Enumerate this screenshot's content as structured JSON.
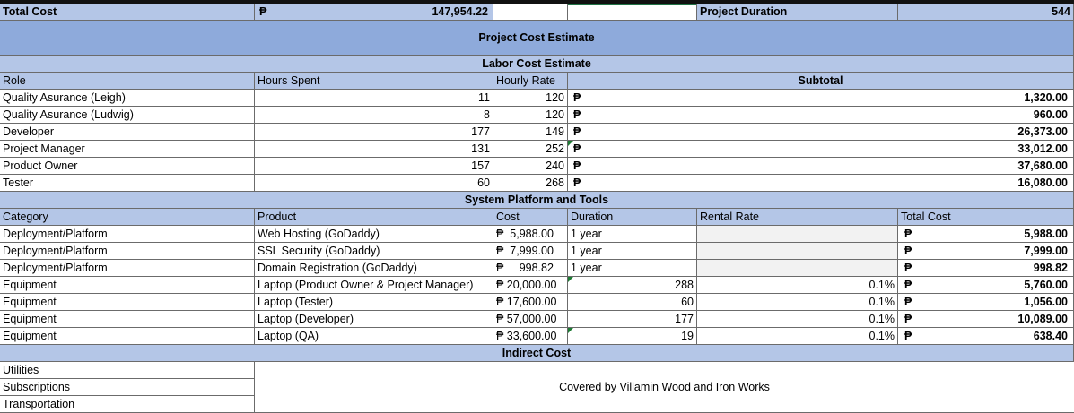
{
  "currency_symbol": "₱",
  "summary": {
    "total_cost_label": "Total Cost",
    "total_cost_value": "147,954.22",
    "duration_label": "Project Duration",
    "duration_value": "544"
  },
  "titles": {
    "main": "Project Cost Estimate",
    "labor": "Labor Cost Estimate",
    "platform": "System Platform and Tools",
    "indirect": "Indirect Cost"
  },
  "labor": {
    "headers": {
      "role": "Role",
      "hours": "Hours Spent",
      "rate": "Hourly Rate",
      "subtotal": "Subtotal"
    },
    "rows": [
      {
        "role": "Quality Asurance (Leigh)",
        "hours": "11",
        "rate": "120",
        "subtotal": "1,320.00"
      },
      {
        "role": "Quality Asurance (Ludwig)",
        "hours": "8",
        "rate": "120",
        "subtotal": "960.00"
      },
      {
        "role": "Developer",
        "hours": "177",
        "rate": "149",
        "subtotal": "26,373.00"
      },
      {
        "role": "Project Manager",
        "hours": "131",
        "rate": "252",
        "subtotal": "33,012.00"
      },
      {
        "role": "Product Owner",
        "hours": "157",
        "rate": "240",
        "subtotal": "37,680.00"
      },
      {
        "role": "Tester",
        "hours": "60",
        "rate": "268",
        "subtotal": "16,080.00"
      }
    ]
  },
  "platform": {
    "headers": {
      "category": "Category",
      "product": "Product",
      "cost": "Cost",
      "duration": "Duration",
      "rental": "Rental Rate",
      "total": "Total Cost"
    },
    "rows": [
      {
        "category": "Deployment/Platform",
        "product": "Web Hosting (GoDaddy)",
        "cost": "₱  5,988.00",
        "duration": "1 year",
        "hours": "",
        "rate": "",
        "total": "5,988.00"
      },
      {
        "category": "Deployment/Platform",
        "product": "SSL Security (GoDaddy)",
        "cost": "₱  7,999.00",
        "duration": "1 year",
        "hours": "",
        "rate": "",
        "total": "7,999.00"
      },
      {
        "category": "Deployment/Platform",
        "product": "Domain Registration  (GoDaddy)",
        "cost": "₱     998.82",
        "duration": "1 year",
        "hours": "",
        "rate": "",
        "total": "998.82"
      },
      {
        "category": "Equipment",
        "product": "Laptop (Product Owner & Project Manager)",
        "cost": "₱ 20,000.00",
        "duration": "",
        "hours": "288",
        "rate": "0.1%",
        "total": "5,760.00"
      },
      {
        "category": "Equipment",
        "product": "Laptop (Tester)",
        "cost": "₱ 17,600.00",
        "duration": "",
        "hours": "60",
        "rate": "0.1%",
        "total": "1,056.00"
      },
      {
        "category": "Equipment",
        "product": "Laptop (Developer)",
        "cost": "₱ 57,000.00",
        "duration": "",
        "hours": "177",
        "rate": "0.1%",
        "total": "10,089.00"
      },
      {
        "category": "Equipment",
        "product": "Laptop (QA)",
        "cost": "₱ 33,600.00",
        "duration": "",
        "hours": "19",
        "rate": "0.1%",
        "total": "638.40"
      }
    ]
  },
  "indirect": {
    "items": [
      "Utilities",
      "Subscriptions",
      "Transportation"
    ],
    "note": "Covered by Villamin Wood and Iron Works"
  }
}
